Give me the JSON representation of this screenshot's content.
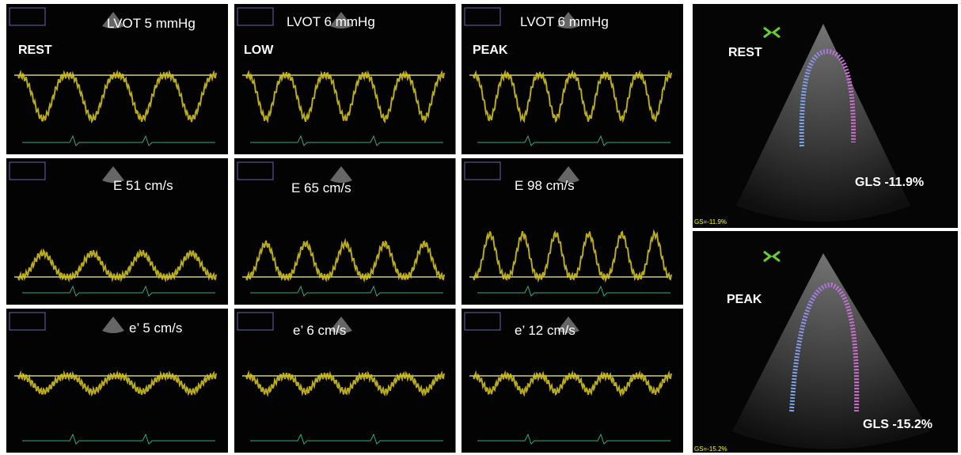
{
  "panels": [
    {
      "condition": "REST",
      "lvot": "LVOT 5 mmHg",
      "e": "E 51 cm/s",
      "e_prime": "e’ 5 cm/s"
    },
    {
      "condition": "LOW",
      "lvot": "LVOT 6 mmHg",
      "e": "E 65 cm/s",
      "e_prime": "e’ 6 cm/s"
    },
    {
      "condition": "PEAK",
      "lvot": "LVOT 6 mmHg",
      "e": "E 98 cm/s",
      "e_prime": "e’ 12 cm/s"
    }
  ],
  "strain": [
    {
      "condition": "REST",
      "gls": "GLS -11.9%",
      "gs": "GS=-11.9%"
    },
    {
      "condition": "PEAK",
      "gls": "GLS -15.2%",
      "gs": "GS=-15.2%"
    }
  ]
}
